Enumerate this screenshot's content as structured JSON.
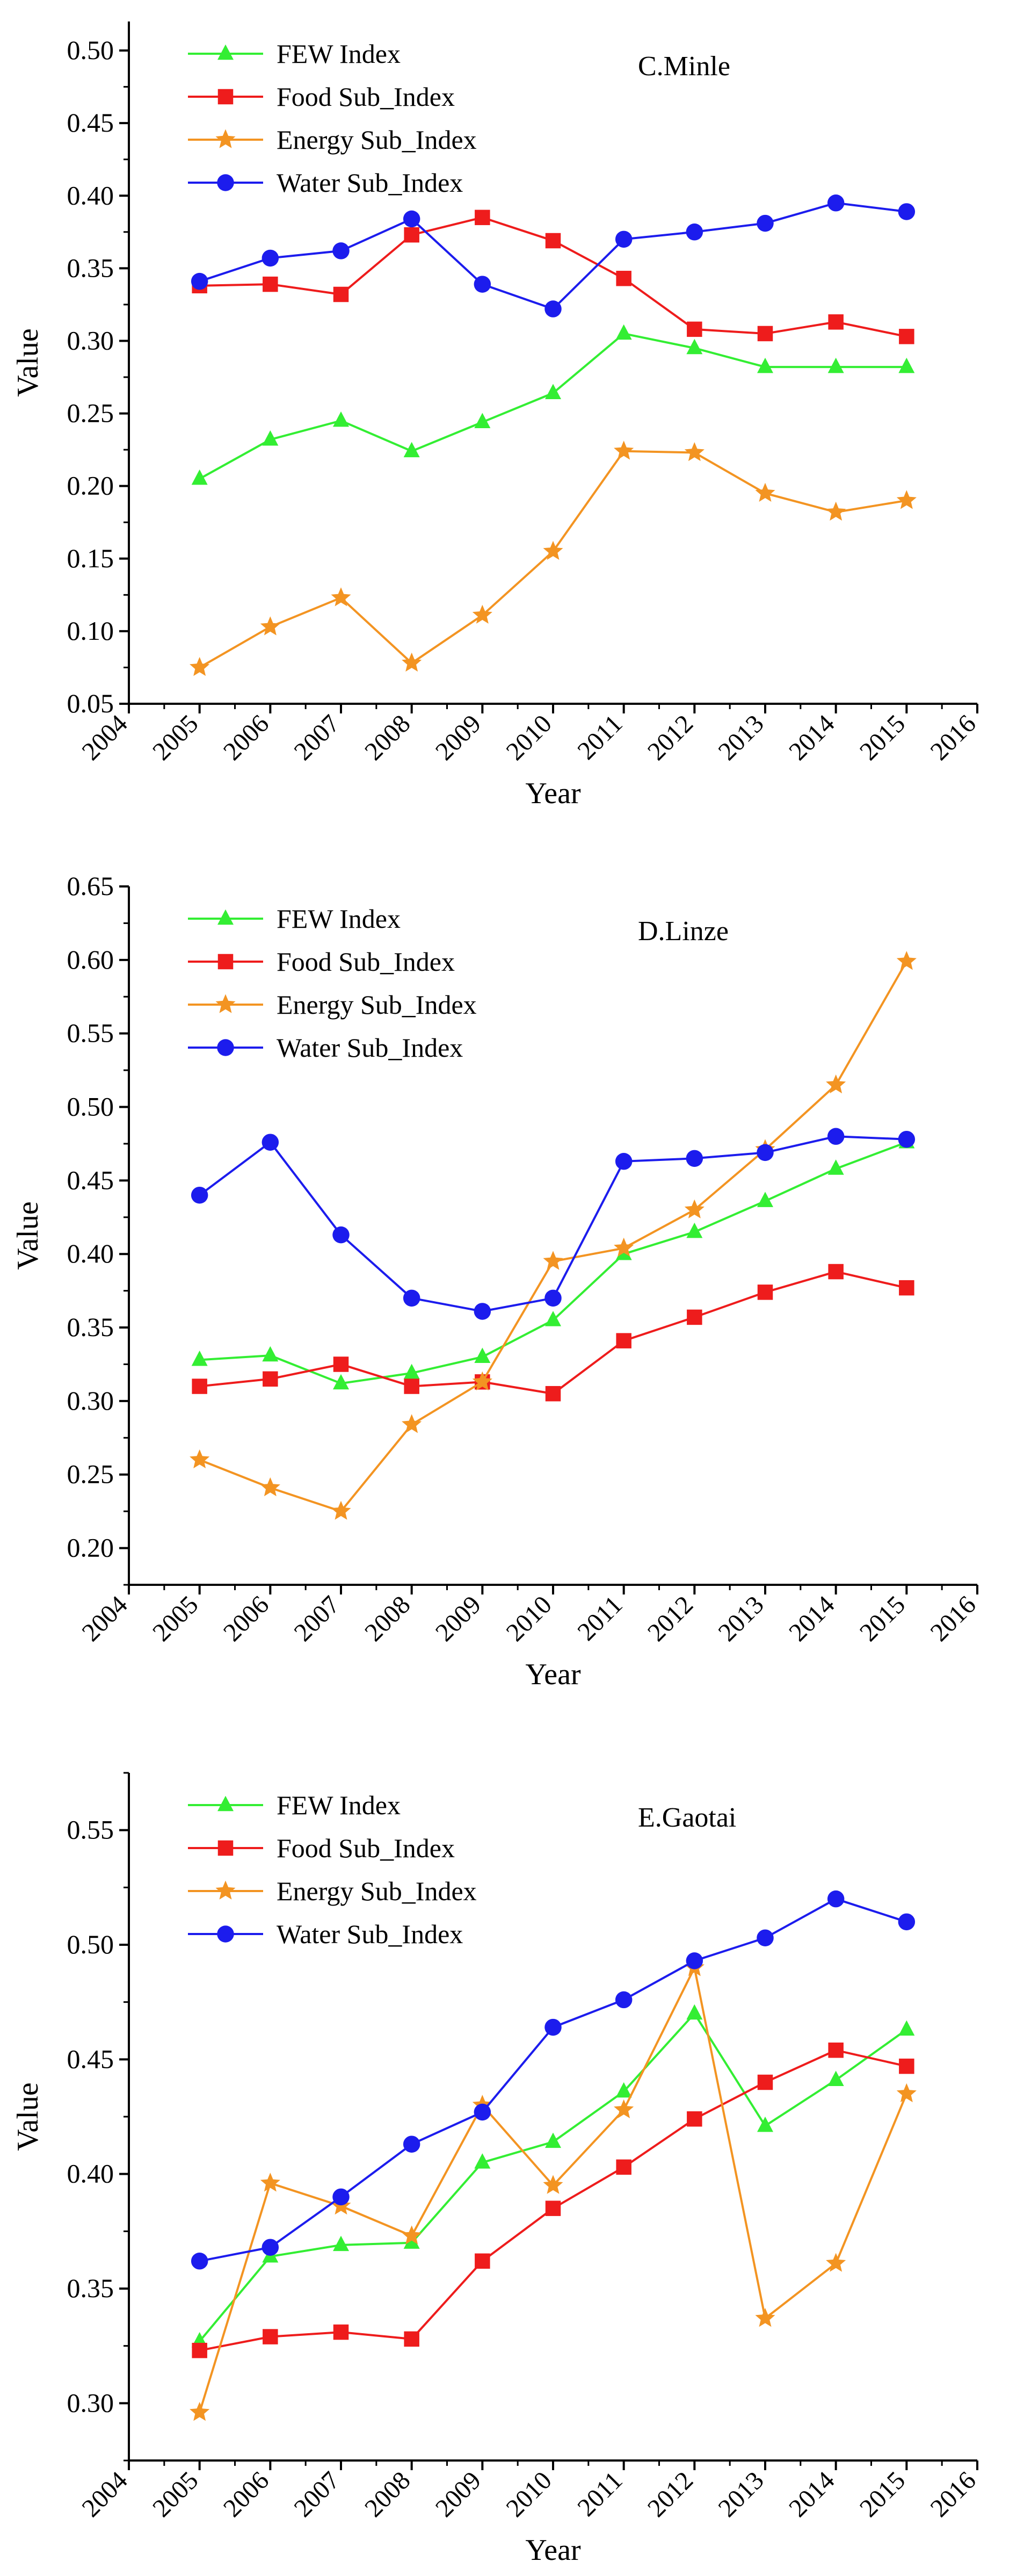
{
  "chart_data": [
    {
      "type": "line",
      "panel_label": "C.Minle",
      "xlabel": "Year",
      "ylabel": "Value",
      "xlim": [
        2004,
        2016
      ],
      "ylim": [
        0.05,
        0.52
      ],
      "x_ticks": [
        "2004",
        "2005",
        "2006",
        "2007",
        "2008",
        "2009",
        "2010",
        "2011",
        "2012",
        "2013",
        "2014",
        "2015",
        "2016"
      ],
      "y_ticks": [
        "0.05",
        "0.10",
        "0.15",
        "0.20",
        "0.25",
        "0.30",
        "0.35",
        "0.40",
        "0.45",
        "0.50"
      ],
      "x": [
        2005,
        2006,
        2007,
        2008,
        2009,
        2010,
        2011,
        2012,
        2013,
        2014,
        2015
      ],
      "series": [
        {
          "name": "FEW Index",
          "color": "#33ee33",
          "marker": "triangle",
          "values": [
            0.205,
            0.232,
            0.245,
            0.224,
            0.244,
            0.264,
            0.305,
            0.295,
            0.282,
            0.282,
            0.282
          ]
        },
        {
          "name": "Food Sub_Index",
          "color": "#ee1c1c",
          "marker": "square",
          "values": [
            0.338,
            0.339,
            0.332,
            0.373,
            0.385,
            0.369,
            0.343,
            0.308,
            0.305,
            0.313,
            0.303
          ]
        },
        {
          "name": "Energy Sub_Index",
          "color": "#f39422",
          "marker": "star",
          "values": [
            0.075,
            0.103,
            0.123,
            0.078,
            0.111,
            0.155,
            0.224,
            0.223,
            0.195,
            0.182,
            0.19
          ]
        },
        {
          "name": "Water Sub_Index",
          "color": "#1c1ced",
          "marker": "circle",
          "values": [
            0.341,
            0.357,
            0.362,
            0.384,
            0.339,
            0.322,
            0.37,
            0.375,
            0.381,
            0.395,
            0.389
          ]
        }
      ]
    },
    {
      "type": "line",
      "panel_label": "D.Linze",
      "xlabel": "Year",
      "ylabel": "Value",
      "xlim": [
        2004,
        2016
      ],
      "ylim": [
        0.175,
        0.65
      ],
      "x_ticks": [
        "2004",
        "2005",
        "2006",
        "2007",
        "2008",
        "2009",
        "2010",
        "2011",
        "2012",
        "2013",
        "2014",
        "2015",
        "2016"
      ],
      "y_ticks": [
        "0.20",
        "0.25",
        "0.30",
        "0.35",
        "0.40",
        "0.45",
        "0.50",
        "0.55",
        "0.60",
        "0.65"
      ],
      "x": [
        2005,
        2006,
        2007,
        2008,
        2009,
        2010,
        2011,
        2012,
        2013,
        2014,
        2015
      ],
      "series": [
        {
          "name": "FEW Index",
          "color": "#33ee33",
          "marker": "triangle",
          "values": [
            0.328,
            0.331,
            0.312,
            0.319,
            0.33,
            0.355,
            0.4,
            0.415,
            0.436,
            0.458,
            0.476
          ]
        },
        {
          "name": "Food Sub_Index",
          "color": "#ee1c1c",
          "marker": "square",
          "values": [
            0.31,
            0.315,
            0.325,
            0.31,
            0.313,
            0.305,
            0.341,
            0.357,
            0.374,
            0.388,
            0.377
          ]
        },
        {
          "name": "Energy Sub_Index",
          "color": "#f39422",
          "marker": "star",
          "values": [
            0.26,
            0.241,
            0.225,
            0.284,
            0.313,
            0.395,
            0.404,
            0.43,
            0.471,
            0.515,
            0.599
          ]
        },
        {
          "name": "Water Sub_Index",
          "color": "#1c1ced",
          "marker": "circle",
          "values": [
            0.44,
            0.476,
            0.413,
            0.37,
            0.361,
            0.37,
            0.463,
            0.465,
            0.469,
            0.48,
            0.478
          ]
        }
      ]
    },
    {
      "type": "line",
      "panel_label": "E.Gaotai",
      "xlabel": "Year",
      "ylabel": "Value",
      "xlim": [
        2004,
        2016
      ],
      "ylim": [
        0.275,
        0.575
      ],
      "x_ticks": [
        "2004",
        "2005",
        "2006",
        "2007",
        "2008",
        "2009",
        "2010",
        "2011",
        "2012",
        "2013",
        "2014",
        "2015",
        "2016"
      ],
      "y_ticks": [
        "0.30",
        "0.35",
        "0.40",
        "0.45",
        "0.50",
        "0.55"
      ],
      "x": [
        2005,
        2006,
        2007,
        2008,
        2009,
        2010,
        2011,
        2012,
        2013,
        2014,
        2015
      ],
      "series": [
        {
          "name": "FEW Index",
          "color": "#33ee33",
          "marker": "triangle",
          "values": [
            0.327,
            0.364,
            0.369,
            0.37,
            0.405,
            0.414,
            0.436,
            0.47,
            0.421,
            0.441,
            0.463
          ]
        },
        {
          "name": "Food Sub_Index",
          "color": "#ee1c1c",
          "marker": "square",
          "values": [
            0.323,
            0.329,
            0.331,
            0.328,
            0.362,
            0.385,
            0.403,
            0.424,
            0.44,
            0.454,
            0.447
          ]
        },
        {
          "name": "Energy Sub_Index",
          "color": "#f39422",
          "marker": "star",
          "values": [
            0.296,
            0.396,
            0.386,
            0.373,
            0.43,
            0.395,
            0.428,
            0.49,
            0.337,
            0.361,
            0.435
          ]
        },
        {
          "name": "Water Sub_Index",
          "color": "#1c1ced",
          "marker": "circle",
          "values": [
            0.362,
            0.368,
            0.39,
            0.413,
            0.427,
            0.464,
            0.476,
            0.493,
            0.503,
            0.52,
            0.51
          ]
        }
      ]
    }
  ]
}
